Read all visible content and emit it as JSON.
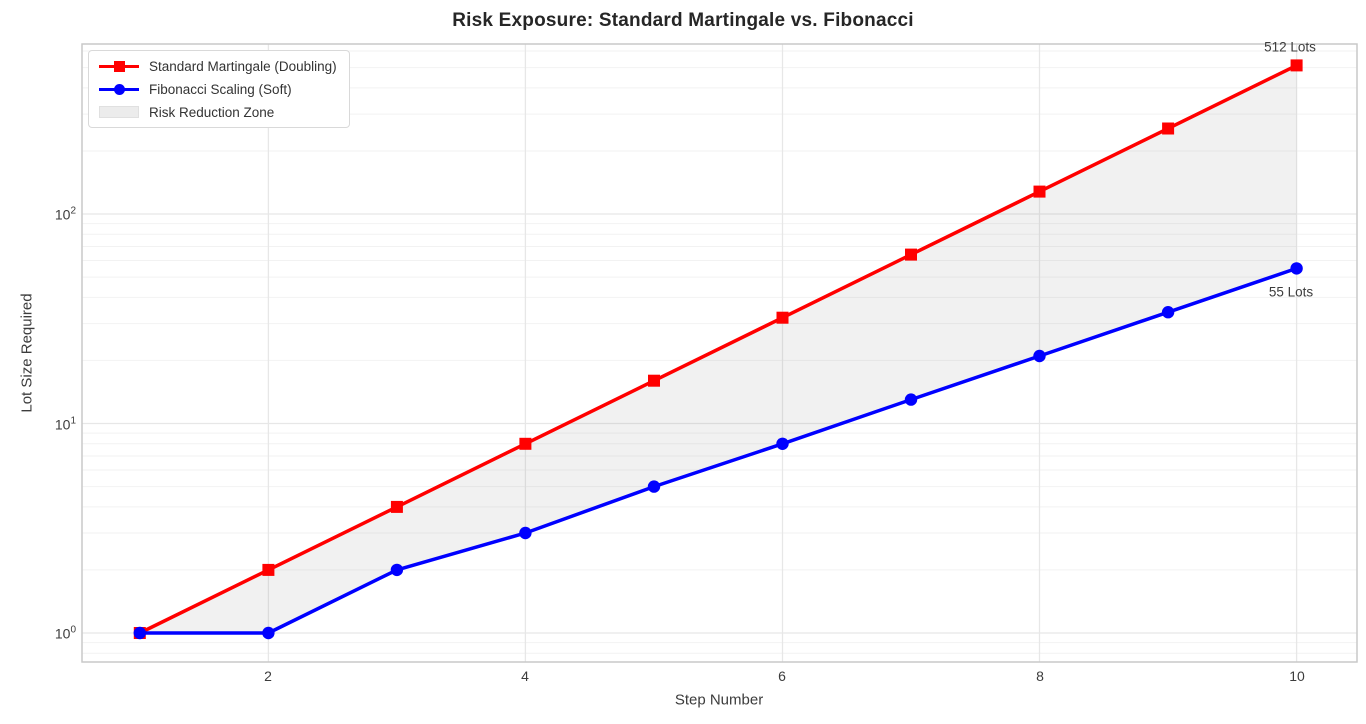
{
  "chart_data": {
    "type": "line",
    "title": "Risk Exposure: Standard Martingale vs. Fibonacci",
    "xlabel": "Step Number",
    "ylabel": "Lot Size Required",
    "yscale": "log",
    "grid": true,
    "legend_position": "upper left",
    "x": [
      1,
      2,
      3,
      4,
      5,
      6,
      7,
      8,
      9,
      10
    ],
    "series": [
      {
        "name": "Standard Martingale (Doubling)",
        "color": "#ff0000",
        "marker": "square",
        "values": [
          1,
          2,
          4,
          8,
          16,
          32,
          64,
          128,
          256,
          512
        ]
      },
      {
        "name": "Fibonacci Scaling (Soft)",
        "color": "#0000ff",
        "marker": "circle",
        "values": [
          1,
          1,
          2,
          3,
          5,
          8,
          13,
          21,
          34,
          55
        ]
      }
    ],
    "fill_between": {
      "label": "Risk Reduction Zone",
      "color": "rgba(128,128,128,0.11)"
    },
    "xlim": [
      0.55,
      10.47
    ],
    "ylim": [
      0.727,
      648
    ],
    "x_ticks": [
      2,
      4,
      6,
      8,
      10
    ],
    "y_ticks": [
      {
        "base": "10",
        "exp": "0",
        "value": 1
      },
      {
        "base": "10",
        "exp": "1",
        "value": 10
      },
      {
        "base": "10",
        "exp": "2",
        "value": 100
      }
    ],
    "annotations": [
      {
        "text": "512 Lots",
        "x": 10,
        "y": 512
      },
      {
        "text": "55 Lots",
        "x": 10,
        "y": 55
      }
    ],
    "colors": {
      "grid_major": "#e7e7e7",
      "grid_minor": "#f2f2f2",
      "spine": "#c9c9c9"
    }
  }
}
